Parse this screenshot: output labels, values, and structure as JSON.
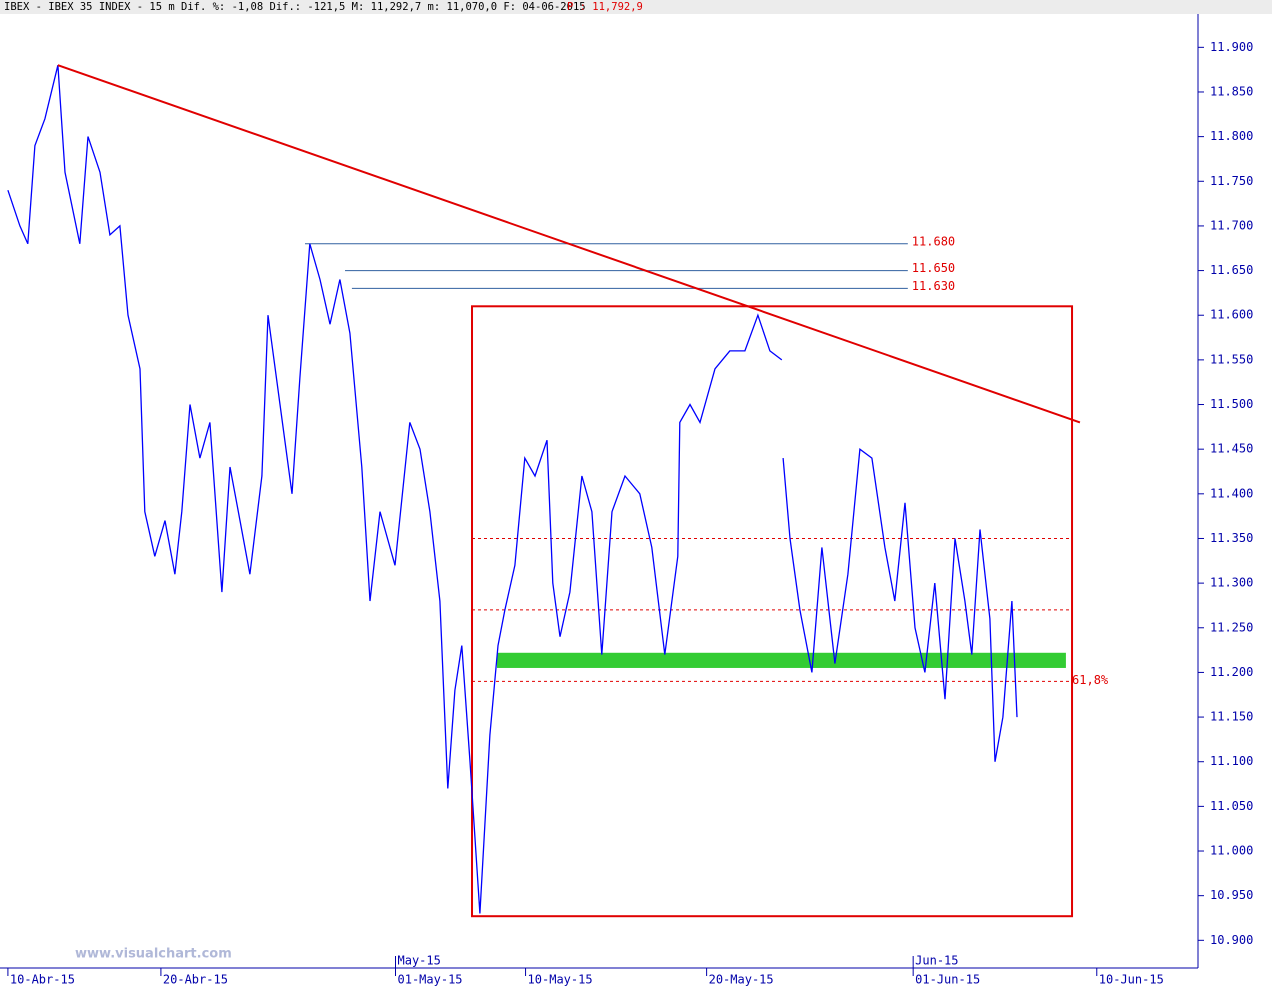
{
  "header": {
    "title": "IBEX - IBEX 35 INDEX -  15 m Dif. %: -1,08 Dif.: -121,5 M: 11,292,7 m: 11,070,0 F: 04-06-2015",
    "price": "P : 11,792,9"
  },
  "watermark": "www.visualchart.com",
  "chart_data": {
    "type": "line",
    "xlim": [
      -0.31,
      46.16
    ],
    "xticks": [
      {
        "value": 0,
        "label": "10-Abr-15"
      },
      {
        "value": 6,
        "label": "20-Abr-15"
      },
      {
        "value": 15.2,
        "label": "01-May-15"
      },
      {
        "value": 20.3,
        "label": "10-May-15"
      },
      {
        "value": 27.4,
        "label": "20-May-15"
      },
      {
        "value": 35.5,
        "label": "01-Jun-15"
      },
      {
        "value": 42.7,
        "label": "10-Jun-15"
      }
    ],
    "month_ticks": [
      {
        "value": 15.2,
        "label": "May-15"
      },
      {
        "value": 35.5,
        "label": "Jun-15"
      }
    ],
    "ylim": [
      10869,
      11953
    ],
    "yticks": [
      {
        "value": 10900,
        "label": "10.900"
      },
      {
        "value": 10950,
        "label": "10.950"
      },
      {
        "value": 11000,
        "label": "11.000"
      },
      {
        "value": 11050,
        "label": "11.050"
      },
      {
        "value": 11100,
        "label": "11.100"
      },
      {
        "value": 11150,
        "label": "11.150"
      },
      {
        "value": 11200,
        "label": "11.200"
      },
      {
        "value": 11250,
        "label": "11.250"
      },
      {
        "value": 11300,
        "label": "11.300"
      },
      {
        "value": 11350,
        "label": "11.350"
      },
      {
        "value": 11400,
        "label": "11.400"
      },
      {
        "value": 11450,
        "label": "11.450"
      },
      {
        "value": 11500,
        "label": "11.500"
      },
      {
        "value": 11550,
        "label": "11.550"
      },
      {
        "value": 11600,
        "label": "11.600"
      },
      {
        "value": 11650,
        "label": "11.650"
      },
      {
        "value": 11700,
        "label": "11.700"
      },
      {
        "value": 11750,
        "label": "11.750"
      },
      {
        "value": 11800,
        "label": "11.800"
      },
      {
        "value": 11850,
        "label": "11.850"
      },
      {
        "value": 11900,
        "label": "11.900"
      }
    ],
    "series": [
      {
        "color": "#0000ff",
        "x": [
          0,
          0.47,
          0.78,
          1.06,
          1.45,
          1.96,
          2.24,
          2.82,
          3.14,
          3.61,
          4,
          4.39,
          4.71,
          5.18,
          5.37,
          5.76,
          6.16,
          6.55,
          6.82,
          7.14,
          7.53,
          7.92,
          8.39,
          8.71,
          9.1,
          9.49,
          9.96,
          10.2,
          10.67,
          11.14,
          11.45,
          11.84,
          12.24,
          12.63,
          13.02,
          13.41,
          13.88,
          14.2,
          14.59,
          15.18,
          15.76,
          16.16,
          16.55,
          16.94,
          17.25,
          17.53,
          17.8,
          18.12,
          18.51,
          18.9,
          19.22,
          19.49,
          19.88,
          20.27,
          20.67,
          21.14,
          21.37,
          21.65,
          22.04,
          22.51,
          22.9,
          23.29,
          23.69,
          24.2,
          24.78,
          25.25,
          25.76,
          26.27,
          26.35,
          26.75,
          27.14,
          27.73,
          28.31,
          28.9,
          29.41,
          29.88,
          30.35,
          30.38,
          30.4,
          30.67,
          31.06,
          31.53,
          31.92,
          32.43,
          32.94,
          33.41,
          33.88,
          34.39,
          34.78,
          35.18,
          35.57,
          35.96,
          36.35,
          36.75,
          37.14,
          37.53,
          37.8,
          38.12,
          38.51,
          38.71,
          39.02,
          39.37,
          39.57
        ],
        "values": [
          11740,
          11700,
          11680,
          11790,
          11820,
          11880,
          11760,
          11680,
          11800,
          11760,
          11690,
          11700,
          11600,
          11540,
          11380,
          11330,
          11370,
          11310,
          11380,
          11500,
          11440,
          11480,
          11290,
          11430,
          11370,
          11310,
          11420,
          11600,
          11500,
          11400,
          11530,
          11680,
          11640,
          11590,
          11640,
          11580,
          11430,
          11280,
          11380,
          11320,
          11480,
          11450,
          11380,
          11280,
          11070,
          11180,
          11230,
          11100,
          10930,
          11130,
          11230,
          11270,
          11320,
          11440,
          11420,
          11460,
          11300,
          11240,
          11290,
          11420,
          11380,
          11220,
          11380,
          11420,
          11400,
          11340,
          11220,
          11330,
          11480,
          11500,
          11480,
          11540,
          11560,
          11560,
          11600,
          11560,
          11550,
          null,
          11440,
          11350,
          11270,
          11200,
          11340,
          11210,
          11310,
          11450,
          11440,
          11340,
          11280,
          11390,
          11250,
          11200,
          11300,
          11170,
          11350,
          11280,
          11220,
          11360,
          11260,
          11100,
          11150,
          11280,
          11150
        ]
      }
    ],
    "trendline": {
      "color": "#e00000",
      "x": [
        1.96,
        42.04
      ],
      "y": [
        11880,
        11480
      ]
    },
    "levels": [
      {
        "value": 11680,
        "label": "11.680",
        "x": [
          11.65,
          35.29
        ]
      },
      {
        "value": 11650,
        "label": "11.650",
        "x": [
          13.22,
          35.29
        ]
      },
      {
        "value": 11630,
        "label": "11.630",
        "x": [
          13.49,
          35.29
        ]
      }
    ],
    "box": {
      "color": "#e00000",
      "x": [
        18.2,
        41.73
      ],
      "y": [
        10927,
        11610
      ]
    },
    "dashed": [
      {
        "value": 11350
      },
      {
        "value": 11270
      },
      {
        "value": 11190,
        "label": "61,8%"
      }
    ],
    "zone": {
      "color": "#33cc33",
      "x": [
        19.18,
        41.49
      ],
      "y": [
        11205,
        11222
      ]
    }
  }
}
